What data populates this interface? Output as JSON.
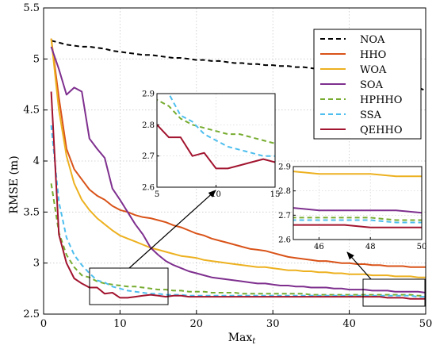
{
  "chart_data": {
    "type": "line",
    "xlabel": "Max",
    "xlabel_sub": "t",
    "ylabel": "RMSE (m)",
    "xlim": [
      0,
      50
    ],
    "ylim": [
      2.5,
      5.5
    ],
    "xticks": [
      0,
      10,
      20,
      30,
      40,
      50
    ],
    "yticks": [
      2.5,
      3,
      3.5,
      4,
      4.5,
      5,
      5.5
    ],
    "grid": true,
    "legend_position": "top-right",
    "x": [
      1,
      2,
      3,
      4,
      5,
      6,
      7,
      8,
      9,
      10,
      11,
      12,
      13,
      14,
      15,
      16,
      17,
      18,
      19,
      20,
      21,
      22,
      23,
      24,
      25,
      26,
      27,
      28,
      29,
      30,
      31,
      32,
      33,
      34,
      35,
      36,
      37,
      38,
      39,
      40,
      41,
      42,
      43,
      44,
      45,
      46,
      47,
      48,
      49,
      50
    ],
    "series": [
      {
        "name": "NOA",
        "color": "#000000",
        "dash": "dashed",
        "values": [
          5.18,
          5.16,
          5.14,
          5.13,
          5.12,
          5.12,
          5.11,
          5.1,
          5.08,
          5.07,
          5.06,
          5.05,
          5.04,
          5.04,
          5.03,
          5.02,
          5.01,
          5.01,
          5.0,
          4.99,
          4.99,
          4.98,
          4.98,
          4.97,
          4.96,
          4.96,
          4.95,
          4.95,
          4.94,
          4.94,
          4.93,
          4.93,
          4.92,
          4.92,
          4.91,
          4.9,
          4.9,
          4.89,
          4.89,
          4.88,
          4.87,
          4.86,
          4.85,
          4.83,
          4.81,
          4.79,
          4.77,
          4.75,
          4.72,
          4.69
        ]
      },
      {
        "name": "HHO",
        "color": "#d95319",
        "dash": "solid",
        "values": [
          5.2,
          4.62,
          4.12,
          3.92,
          3.82,
          3.72,
          3.66,
          3.62,
          3.56,
          3.52,
          3.5,
          3.47,
          3.45,
          3.44,
          3.42,
          3.4,
          3.37,
          3.35,
          3.32,
          3.29,
          3.27,
          3.24,
          3.22,
          3.2,
          3.18,
          3.16,
          3.14,
          3.13,
          3.12,
          3.1,
          3.08,
          3.06,
          3.05,
          3.04,
          3.03,
          3.02,
          3.02,
          3.01,
          3.0,
          3.0,
          2.99,
          2.99,
          2.98,
          2.98,
          2.97,
          2.97,
          2.97,
          2.96,
          2.96,
          2.96
        ]
      },
      {
        "name": "WOA",
        "color": "#edb120",
        "dash": "solid",
        "values": [
          5.2,
          4.5,
          4.05,
          3.78,
          3.62,
          3.52,
          3.44,
          3.38,
          3.32,
          3.27,
          3.24,
          3.21,
          3.18,
          3.15,
          3.13,
          3.11,
          3.09,
          3.07,
          3.06,
          3.05,
          3.03,
          3.02,
          3.01,
          3.0,
          2.99,
          2.98,
          2.97,
          2.96,
          2.96,
          2.95,
          2.94,
          2.93,
          2.93,
          2.92,
          2.92,
          2.91,
          2.91,
          2.9,
          2.9,
          2.89,
          2.89,
          2.89,
          2.88,
          2.88,
          2.88,
          2.87,
          2.87,
          2.87,
          2.86,
          2.86
        ]
      },
      {
        "name": "SOA",
        "color": "#7e2f8e",
        "dash": "solid",
        "values": [
          5.12,
          4.9,
          4.65,
          4.72,
          4.68,
          4.22,
          4.12,
          4.03,
          3.73,
          3.62,
          3.5,
          3.38,
          3.28,
          3.15,
          3.08,
          3.02,
          2.98,
          2.95,
          2.92,
          2.9,
          2.88,
          2.86,
          2.85,
          2.84,
          2.83,
          2.82,
          2.81,
          2.8,
          2.8,
          2.79,
          2.78,
          2.78,
          2.77,
          2.77,
          2.76,
          2.76,
          2.76,
          2.75,
          2.75,
          2.74,
          2.74,
          2.74,
          2.73,
          2.73,
          2.73,
          2.72,
          2.72,
          2.72,
          2.72,
          2.71
        ]
      },
      {
        "name": "HPHHO",
        "color": "#77ac30",
        "dash": "dashed",
        "values": [
          3.78,
          3.3,
          3.08,
          2.96,
          2.88,
          2.86,
          2.82,
          2.8,
          2.79,
          2.78,
          2.77,
          2.77,
          2.76,
          2.75,
          2.74,
          2.74,
          2.73,
          2.73,
          2.72,
          2.72,
          2.72,
          2.71,
          2.71,
          2.71,
          2.71,
          2.7,
          2.7,
          2.7,
          2.7,
          2.7,
          2.7,
          2.7,
          2.7,
          2.7,
          2.69,
          2.69,
          2.69,
          2.69,
          2.69,
          2.69,
          2.69,
          2.69,
          2.69,
          2.69,
          2.69,
          2.69,
          2.69,
          2.69,
          2.68,
          2.68
        ]
      },
      {
        "name": "SSA",
        "color": "#4dbeee",
        "dash": "dashed",
        "values": [
          4.35,
          3.6,
          3.25,
          3.08,
          2.98,
          2.9,
          2.83,
          2.81,
          2.77,
          2.75,
          2.73,
          2.72,
          2.71,
          2.7,
          2.7,
          2.69,
          2.69,
          2.69,
          2.68,
          2.68,
          2.68,
          2.68,
          2.68,
          2.68,
          2.68,
          2.68,
          2.68,
          2.68,
          2.68,
          2.68,
          2.68,
          2.68,
          2.68,
          2.68,
          2.68,
          2.68,
          2.68,
          2.68,
          2.68,
          2.68,
          2.68,
          2.68,
          2.68,
          2.68,
          2.68,
          2.68,
          2.68,
          2.68,
          2.67,
          2.67
        ]
      },
      {
        "name": "QEHHO",
        "color": "#a2142f",
        "dash": "solid",
        "values": [
          4.68,
          3.28,
          3.0,
          2.85,
          2.8,
          2.76,
          2.76,
          2.7,
          2.71,
          2.66,
          2.66,
          2.67,
          2.68,
          2.69,
          2.68,
          2.67,
          2.68,
          2.68,
          2.67,
          2.67,
          2.67,
          2.67,
          2.67,
          2.67,
          2.67,
          2.67,
          2.67,
          2.67,
          2.67,
          2.67,
          2.67,
          2.67,
          2.67,
          2.67,
          2.67,
          2.67,
          2.67,
          2.67,
          2.67,
          2.67,
          2.67,
          2.67,
          2.67,
          2.67,
          2.66,
          2.66,
          2.66,
          2.65,
          2.65,
          2.65
        ]
      }
    ],
    "insets": [
      {
        "xlim": [
          5,
          15
        ],
        "ylim": [
          2.6,
          2.9
        ],
        "xticks": [
          5,
          10,
          15
        ],
        "yticks": [
          2.6,
          2.7,
          2.8,
          2.9
        ]
      },
      {
        "xlim": [
          45,
          50
        ],
        "ylim": [
          2.6,
          2.9
        ],
        "xticks": [
          46,
          48,
          50
        ],
        "yticks": [
          2.6,
          2.7,
          2.8,
          2.9
        ]
      }
    ]
  }
}
